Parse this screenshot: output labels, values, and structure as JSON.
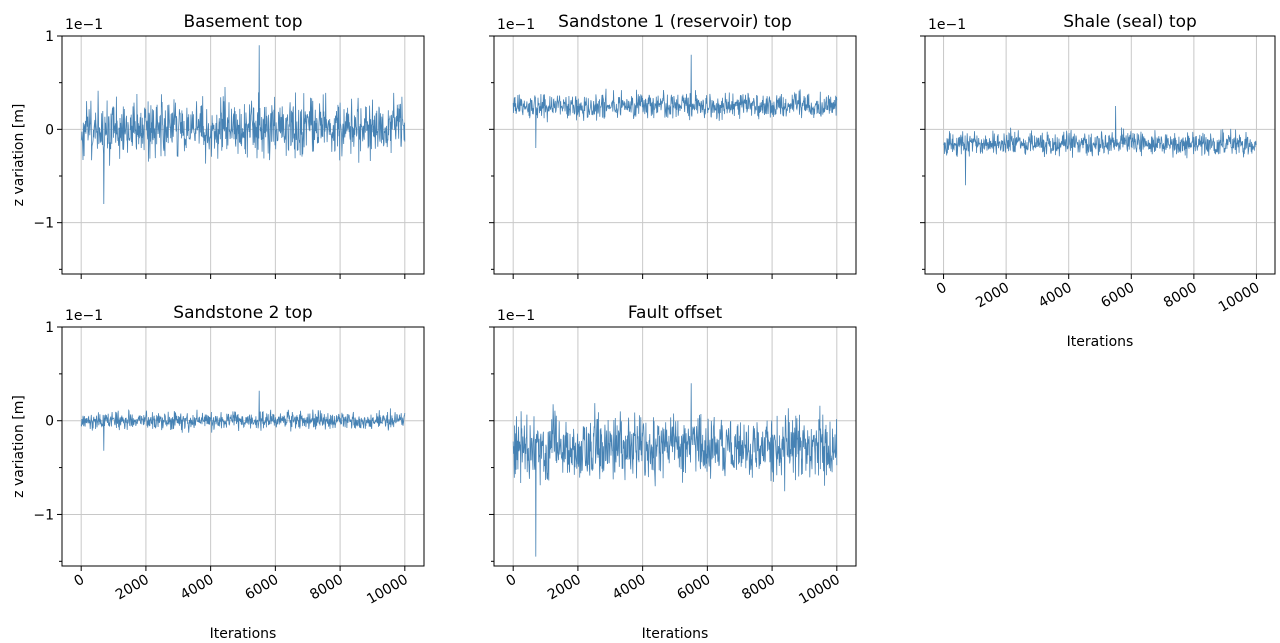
{
  "figure": {
    "shared_xlabel": "Iterations",
    "shared_ylabel": "z variation [m]",
    "y_offset_label": "1e−1",
    "line_color": "#4682b4",
    "grid": true
  },
  "chart_data": [
    {
      "type": "line",
      "title": "Basement top",
      "xlabel": "",
      "ylabel": "z variation [m]",
      "y_offset_label": "1e−1",
      "x_range": [
        0,
        10000
      ],
      "ylim": [
        -1.55,
        1.0
      ],
      "xticks": [
        0,
        2000,
        4000,
        6000,
        8000,
        10000
      ],
      "ytick_values": [
        1,
        0,
        -1
      ],
      "ytick_labels": [
        "1",
        "0",
        "−1"
      ],
      "minor_yticks": [
        0.5,
        -0.5,
        -1.5
      ],
      "series": [
        {
          "mean": 0.0,
          "amplitude": 0.3,
          "peaks": [
            0.9,
            -0.8
          ]
        }
      ]
    },
    {
      "type": "line",
      "title": "Sandstone 1 (reservoir) top",
      "xlabel": "",
      "ylabel": "",
      "y_offset_label": "1e−1",
      "x_range": [
        0,
        10000
      ],
      "ylim": [
        -1.55,
        1.0
      ],
      "xticks": [
        0,
        2000,
        4000,
        6000,
        8000,
        10000
      ],
      "ytick_values": [
        1,
        0,
        -1
      ],
      "ytick_labels": [
        "",
        "",
        ""
      ],
      "minor_yticks": [
        0.5,
        -0.5,
        -1.5
      ],
      "series": [
        {
          "mean": 0.25,
          "amplitude": 0.13,
          "peaks": [
            0.8,
            -0.2
          ]
        }
      ]
    },
    {
      "type": "line",
      "title": "Shale (seal) top",
      "xlabel": "Iterations",
      "ylabel": "",
      "y_offset_label": "1e−1",
      "x_range": [
        0,
        10000
      ],
      "ylim": [
        -1.55,
        1.0
      ],
      "xticks": [
        0,
        2000,
        4000,
        6000,
        8000,
        10000
      ],
      "xtick_labels": [
        "0",
        "2000",
        "4000",
        "6000",
        "8000",
        "10000"
      ],
      "ytick_values": [
        1,
        0,
        -1
      ],
      "ytick_labels": [
        "",
        "",
        ""
      ],
      "minor_yticks": [
        0.5,
        -0.5,
        -1.5
      ],
      "series": [
        {
          "mean": -0.15,
          "amplitude": 0.12,
          "peaks": [
            0.25,
            -0.6
          ]
        }
      ]
    },
    {
      "type": "line",
      "title": "Sandstone 2 top",
      "xlabel": "Iterations",
      "ylabel": "z variation [m]",
      "y_offset_label": "1e−1",
      "x_range": [
        0,
        10000
      ],
      "ylim": [
        -1.55,
        1.0
      ],
      "xticks": [
        0,
        2000,
        4000,
        6000,
        8000,
        10000
      ],
      "xtick_labels": [
        "0",
        "2000",
        "4000",
        "6000",
        "8000",
        "10000"
      ],
      "ytick_values": [
        1,
        0,
        -1
      ],
      "ytick_labels": [
        "1",
        "0",
        "−1"
      ],
      "minor_yticks": [
        0.5,
        -0.5,
        -1.5
      ],
      "series": [
        {
          "mean": 0.0,
          "amplitude": 0.09,
          "peaks": [
            0.32,
            -0.32
          ]
        }
      ]
    },
    {
      "type": "line",
      "title": "Fault offset",
      "xlabel": "Iterations",
      "ylabel": "",
      "y_offset_label": "1e−1",
      "x_range": [
        0,
        10000
      ],
      "ylim": [
        -1.55,
        1.0
      ],
      "xticks": [
        0,
        2000,
        4000,
        6000,
        8000,
        10000
      ],
      "xtick_labels": [
        "0",
        "2000",
        "4000",
        "6000",
        "8000",
        "10000"
      ],
      "ytick_values": [
        1,
        0,
        -1
      ],
      "ytick_labels": [
        "",
        "",
        ""
      ],
      "minor_yticks": [
        0.5,
        -0.5,
        -1.5
      ],
      "series": [
        {
          "mean": -0.28,
          "amplitude": 0.33,
          "peaks": [
            0.4,
            -1.45
          ]
        }
      ]
    }
  ]
}
